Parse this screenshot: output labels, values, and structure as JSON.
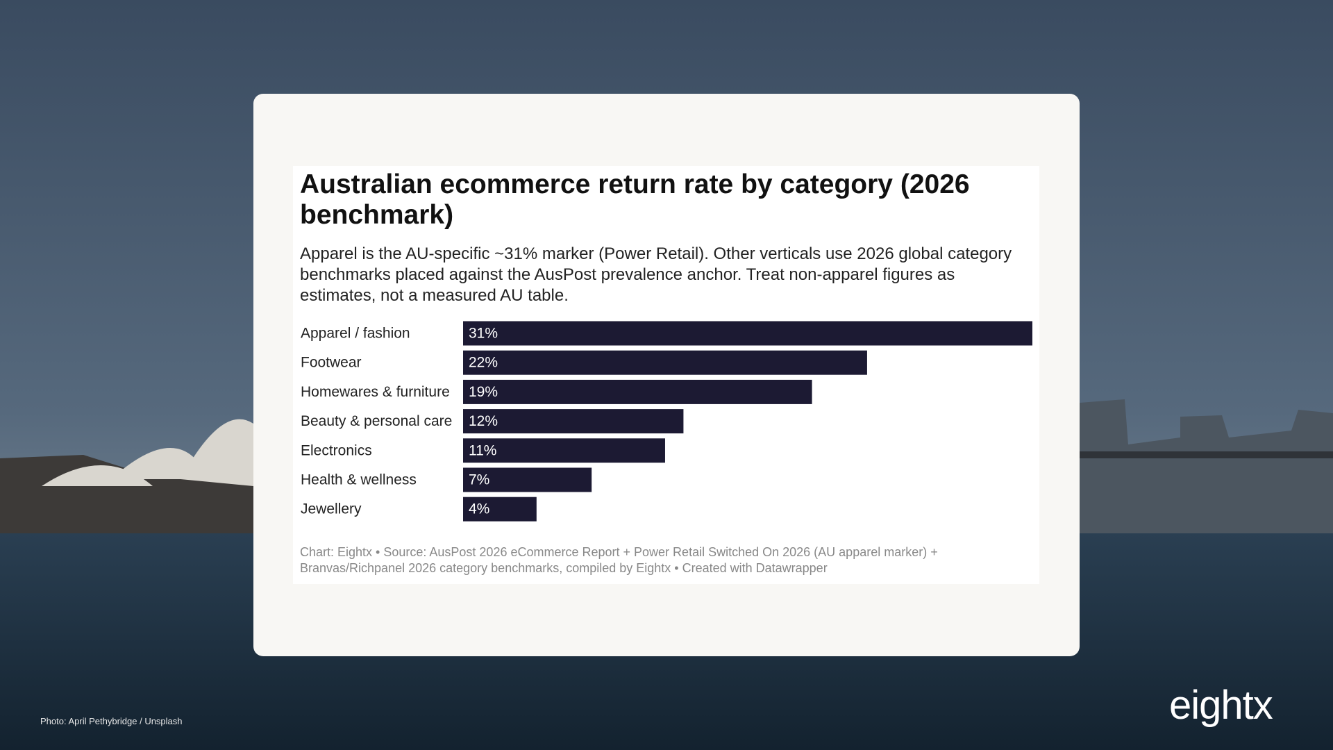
{
  "chart_data": {
    "type": "bar",
    "orientation": "horizontal",
    "title": "Australian ecommerce return rate by category (2026 benchmark)",
    "subtitle": "Apparel is the AU-specific ~31% marker (Power Retail). Other verticals use 2026 global category benchmarks placed against the AusPost prevalence anchor. Treat non-apparel figures as estimates, not a measured AU table.",
    "categories": [
      "Apparel / fashion",
      "Footwear",
      "Homewares & furniture",
      "Beauty & personal care",
      "Electronics",
      "Health & wellness",
      "Jewellery"
    ],
    "values": [
      31,
      22,
      19,
      12,
      11,
      7,
      4
    ],
    "value_labels": [
      "31%",
      "22%",
      "19%",
      "12%",
      "11%",
      "7%",
      "4%"
    ],
    "color": "#1c1a33",
    "source": "Chart: Eightx • Source: AusPost 2026 eCommerce Report + Power Retail Switched On 2026 (AU apparel marker) + Branvas/Richpanel 2026 category benchmarks, compiled by Eightx • Created with Datawrapper"
  },
  "photo_credit": "Photo: April Pethybridge / Unsplash",
  "logo": "eightx"
}
